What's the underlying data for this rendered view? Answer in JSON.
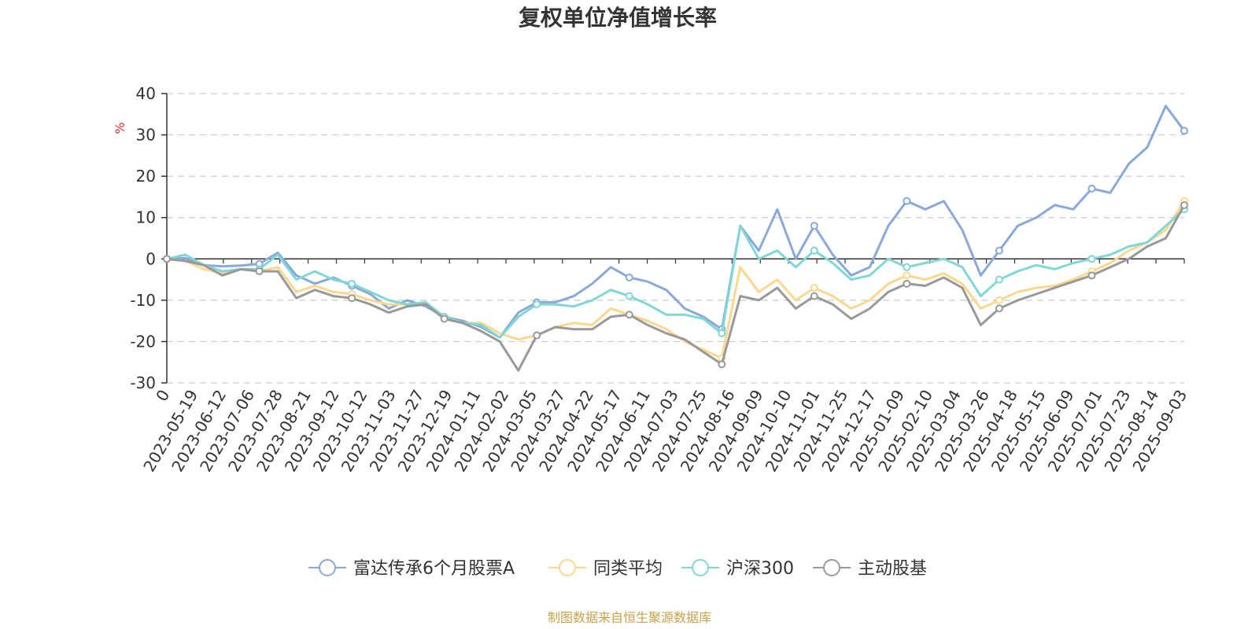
{
  "chart_data": {
    "type": "line",
    "title": "复权单位净值增长率",
    "ylabel": "%",
    "ylim": [
      -30,
      40
    ],
    "yticks": [
      -30,
      -20,
      -10,
      0,
      10,
      20,
      30,
      40
    ],
    "x_tick_labels": [
      "0",
      "2023-05-19",
      "2023-06-12",
      "2023-07-06",
      "2023-07-28",
      "2023-08-21",
      "2023-09-12",
      "2023-10-12",
      "2023-11-03",
      "2023-11-27",
      "2023-12-19",
      "2024-01-11",
      "2024-02-02",
      "2024-03-05",
      "2024-03-27",
      "2024-04-22",
      "2024-05-17",
      "2024-06-11",
      "2024-07-03",
      "2024-07-25",
      "2024-08-16",
      "2024-09-09",
      "2024-10-10",
      "2024-11-01",
      "2024-11-25",
      "2024-12-17",
      "2025-01-09",
      "2025-02-10",
      "2025-03-04",
      "2025-03-26",
      "2025-04-18",
      "2025-05-15",
      "2025-06-09",
      "2025-07-01",
      "2025-07-23",
      "2025-08-14",
      "2025-09-03"
    ],
    "grid": true,
    "legend_position": "bottom",
    "series": [
      {
        "name": "富达传承6个月股票A",
        "color": "#8aa9d8",
        "values": [
          0,
          0.2,
          -1.5,
          -1.8,
          -1.6,
          -1.2,
          1.5,
          -4,
          -6,
          -4.5,
          -6.5,
          -8.5,
          -12,
          -10,
          -11.5,
          -14,
          -15,
          -16.5,
          -19,
          -13,
          -10.5,
          -10.5,
          -9,
          -6,
          -2,
          -4.5,
          -5.5,
          -7.5,
          -12,
          -14,
          -17,
          8,
          2,
          12,
          0,
          8,
          1,
          -4,
          -2,
          8,
          14,
          12,
          14,
          7,
          -4,
          2,
          8,
          10,
          13,
          12,
          17,
          16,
          23,
          27,
          37,
          31
        ]
      },
      {
        "name": "同类平均",
        "color": "#fcd88f",
        "values": [
          0,
          -0.5,
          -2.5,
          -3.5,
          -2.5,
          -3,
          -2,
          -8,
          -6.5,
          -8,
          -8.5,
          -10,
          -11,
          -11,
          -10.5,
          -14,
          -15.5,
          -15.5,
          -18,
          -19.5,
          -18.5,
          -16.5,
          -15.5,
          -16,
          -12,
          -13.5,
          -15,
          -17,
          -20,
          -22,
          -24,
          -2,
          -8,
          -5,
          -10,
          -7,
          -9,
          -12,
          -10,
          -6,
          -4,
          -5,
          -3.5,
          -6,
          -12,
          -10,
          -8,
          -7,
          -6.5,
          -5,
          -3,
          -1,
          2,
          4,
          7,
          14
        ]
      },
      {
        "name": "沪深300",
        "color": "#80d7d6",
        "values": [
          0,
          1,
          -1.5,
          -3,
          -2.5,
          -2.5,
          1,
          -5,
          -3,
          -5,
          -6,
          -8,
          -10,
          -11,
          -10.5,
          -14,
          -15.5,
          -16,
          -19,
          -14,
          -11,
          -11,
          -11.5,
          -10,
          -7.5,
          -9,
          -11,
          -13.5,
          -13.5,
          -14.5,
          -18,
          8,
          0,
          2,
          -2,
          2,
          -1,
          -5,
          -4,
          0,
          -2,
          -1,
          0,
          -2,
          -9,
          -5,
          -3,
          -1.5,
          -2.5,
          -1,
          0,
          1,
          3,
          4,
          8,
          12
        ]
      },
      {
        "name": "主动股基",
        "color": "#999999",
        "values": [
          0,
          -0.5,
          -1.5,
          -4,
          -2.5,
          -3,
          -3,
          -9.5,
          -7.5,
          -9,
          -9.5,
          -11,
          -13,
          -11.5,
          -11,
          -14.5,
          -15.5,
          -17.5,
          -20,
          -27,
          -18.5,
          -16.5,
          -17,
          -17,
          -14,
          -13.5,
          -16,
          -18,
          -19.5,
          -22.5,
          -25.5,
          -9,
          -10,
          -7,
          -12,
          -9,
          -11,
          -14.5,
          -12,
          -8,
          -6,
          -6.5,
          -4.5,
          -7,
          -16,
          -12,
          -10,
          -8.5,
          -7,
          -5.5,
          -4,
          -2,
          0,
          3,
          5,
          13
        ]
      }
    ]
  },
  "footer": {
    "source": "制图数据来自恒生聚源数据库",
    "source_color": "#c8a24a"
  },
  "colors": {
    "axis": "#333333",
    "grid": "#cccccc",
    "unit": "#e03030"
  }
}
